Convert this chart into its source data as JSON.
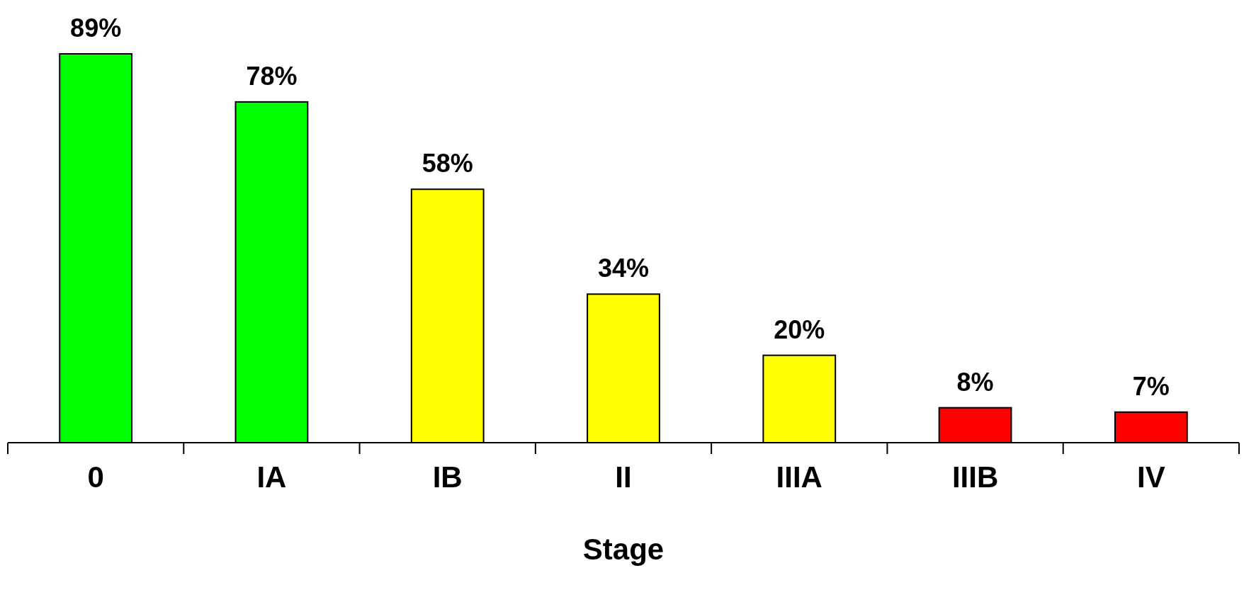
{
  "chart_data": {
    "type": "bar",
    "xlabel": "Stage",
    "categories": [
      "0",
      "IA",
      "IB",
      "II",
      "IIIA",
      "IIIB",
      "IV"
    ],
    "values": [
      89,
      78,
      58,
      34,
      20,
      8,
      7
    ],
    "value_labels": [
      "89%",
      "78%",
      "58%",
      "34%",
      "20%",
      "8%",
      "7%"
    ],
    "colors": [
      "#00ff00",
      "#00ff00",
      "#ffff00",
      "#ffff00",
      "#ffff00",
      "#ff0000",
      "#ff0000"
    ]
  }
}
